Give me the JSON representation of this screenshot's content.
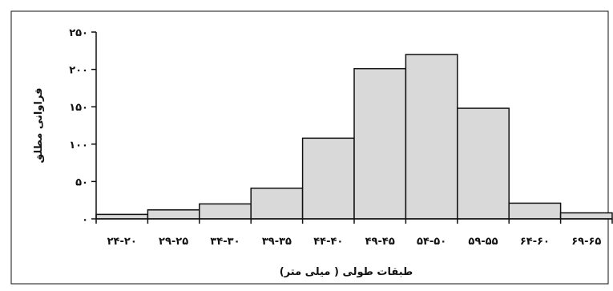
{
  "chart_data": {
    "type": "bar",
    "title": "",
    "xlabel": "طبقات طولی ( میلی متر)",
    "ylabel": "فراوانی مطلق",
    "categories": [
      "۲۴-۲۰",
      "۲۹-۲۵",
      "۳۴-۳۰",
      "۳۹-۳۵",
      "۴۴-۴۰",
      "۴۹-۴۵",
      "۵۴-۵۰",
      "۵۹-۵۵",
      "۶۴-۶۰",
      "۶۹-۶۵"
    ],
    "values": [
      6,
      12,
      20,
      41,
      108,
      201,
      220,
      148,
      21,
      8
    ],
    "ylim": [
      0,
      250
    ],
    "yticks": [
      0,
      50,
      100,
      150,
      200,
      250
    ],
    "ytick_labels": [
      "۰",
      "۵۰",
      "۱۰۰",
      "۱۵۰",
      "۲۰۰",
      "۲۵۰"
    ],
    "grid": false,
    "legend": "none",
    "bar_color": "#d9d9d9",
    "edge_color": "#111111"
  }
}
